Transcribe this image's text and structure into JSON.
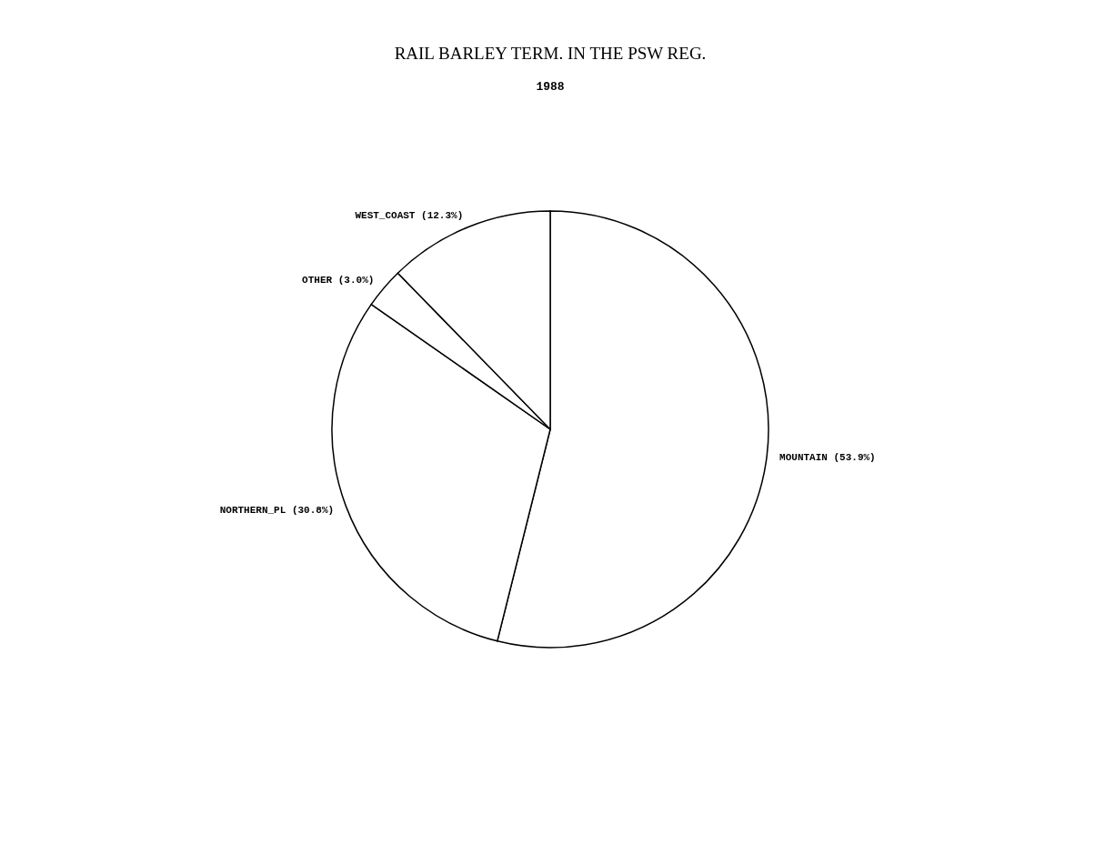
{
  "chart_data": {
    "type": "pie",
    "title": "RAIL BARLEY TERM. IN THE PSW REG.",
    "subtitle": "1988",
    "categories": [
      "MOUNTAIN",
      "NORTHERN_PL",
      "OTHER",
      "WEST_COAST"
    ],
    "values": [
      53.9,
      30.8,
      3.0,
      12.3
    ],
    "value_labels": [
      "(53.9%)",
      "(30.8%)",
      "(3.0%)",
      "(12.3%)"
    ],
    "colors": [
      "#ffffff",
      "#ffffff",
      "#ffffff",
      "#ffffff"
    ],
    "legend": false
  }
}
